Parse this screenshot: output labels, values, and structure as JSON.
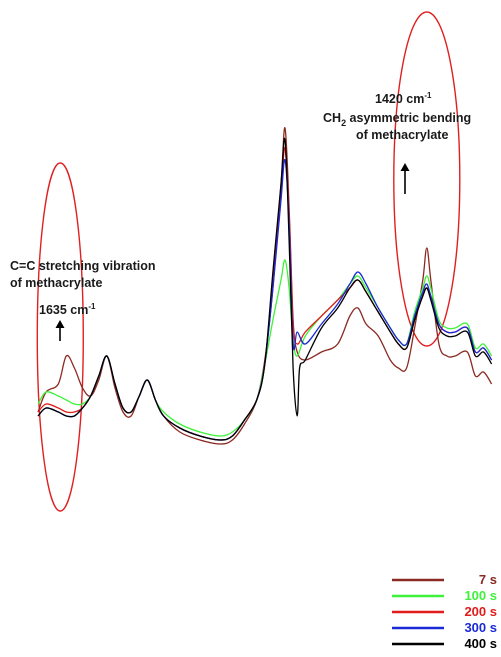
{
  "chart_data": {
    "type": "line",
    "title": "",
    "xlabel": "",
    "ylabel": "",
    "axes_visible": false,
    "grid": false,
    "legend_position": "bottom-right",
    "series": [
      {
        "name": "7 s",
        "color": "#8b2a22",
        "points": [
          [
            0,
            -0.15
          ],
          [
            2,
            0.1
          ],
          [
            5,
            0.2
          ],
          [
            7,
            0.55
          ],
          [
            9,
            0.4
          ],
          [
            11,
            0.15
          ],
          [
            13,
            0.05
          ],
          [
            15,
            0.25
          ],
          [
            17,
            0.55
          ],
          [
            19,
            0.15
          ],
          [
            21,
            -0.15
          ],
          [
            23,
            -0.2
          ],
          [
            25,
            0.05
          ],
          [
            27,
            0.25
          ],
          [
            29,
            0.0
          ],
          [
            31,
            -0.2
          ],
          [
            35,
            -0.4
          ],
          [
            40,
            -0.5
          ],
          [
            45,
            -0.55
          ],
          [
            48,
            -0.5
          ],
          [
            51,
            -0.3
          ],
          [
            54,
            0.0
          ],
          [
            56,
            0.5
          ],
          [
            58,
            1.4
          ],
          [
            60,
            2.7
          ],
          [
            61,
            3.4
          ],
          [
            62,
            2.4
          ],
          [
            63,
            1.0
          ],
          [
            64,
            0.6
          ],
          [
            66,
            0.5
          ],
          [
            70,
            0.6
          ],
          [
            74,
            0.7
          ],
          [
            77,
            1.05
          ],
          [
            79,
            1.15
          ],
          [
            81,
            0.95
          ],
          [
            84,
            0.8
          ],
          [
            87,
            0.5
          ],
          [
            89,
            0.4
          ],
          [
            91,
            0.4
          ],
          [
            93,
            0.9
          ],
          [
            95,
            1.5
          ],
          [
            96,
            1.9
          ],
          [
            97,
            1.5
          ],
          [
            99,
            0.7
          ],
          [
            101,
            0.55
          ],
          [
            103,
            0.55
          ],
          [
            106,
            0.6
          ],
          [
            108,
            0.3
          ],
          [
            110,
            0.35
          ],
          [
            112,
            0.2
          ]
        ]
      },
      {
        "name": "100 s",
        "color": "#3ef23a",
        "points": [
          [
            0,
            -0.05
          ],
          [
            2,
            0.1
          ],
          [
            5,
            0.05
          ],
          [
            7,
            0.0
          ],
          [
            9,
            -0.05
          ],
          [
            11,
            -0.05
          ],
          [
            13,
            0.05
          ],
          [
            15,
            0.3
          ],
          [
            17,
            0.55
          ],
          [
            19,
            0.2
          ],
          [
            21,
            -0.1
          ],
          [
            23,
            -0.15
          ],
          [
            25,
            0.05
          ],
          [
            27,
            0.25
          ],
          [
            29,
            0.0
          ],
          [
            31,
            -0.15
          ],
          [
            35,
            -0.3
          ],
          [
            40,
            -0.4
          ],
          [
            45,
            -0.45
          ],
          [
            48,
            -0.4
          ],
          [
            51,
            -0.25
          ],
          [
            54,
            0.0
          ],
          [
            56,
            0.45
          ],
          [
            58,
            1.0
          ],
          [
            60,
            1.5
          ],
          [
            61,
            1.75
          ],
          [
            62,
            1.4
          ],
          [
            63,
            0.75
          ],
          [
            64,
            0.55
          ],
          [
            66,
            0.8
          ],
          [
            70,
            1.05
          ],
          [
            74,
            1.25
          ],
          [
            77,
            1.45
          ],
          [
            79,
            1.55
          ],
          [
            81,
            1.4
          ],
          [
            84,
            1.15
          ],
          [
            87,
            0.9
          ],
          [
            89,
            0.75
          ],
          [
            91,
            0.7
          ],
          [
            93,
            1.1
          ],
          [
            95,
            1.4
          ],
          [
            96,
            1.55
          ],
          [
            97,
            1.4
          ],
          [
            99,
            1.0
          ],
          [
            101,
            0.9
          ],
          [
            103,
            0.9
          ],
          [
            106,
            0.95
          ],
          [
            108,
            0.65
          ],
          [
            110,
            0.7
          ],
          [
            112,
            0.55
          ]
        ]
      },
      {
        "name": "200 s",
        "color": "#e21b1b",
        "points": [
          [
            0,
            -0.15
          ],
          [
            2,
            -0.05
          ],
          [
            5,
            -0.1
          ],
          [
            7,
            -0.15
          ],
          [
            9,
            -0.15
          ],
          [
            11,
            -0.1
          ],
          [
            13,
            0.05
          ],
          [
            15,
            0.3
          ],
          [
            17,
            0.55
          ],
          [
            19,
            0.2
          ],
          [
            21,
            -0.1
          ],
          [
            23,
            -0.15
          ],
          [
            25,
            0.05
          ],
          [
            27,
            0.25
          ],
          [
            29,
            0.0
          ],
          [
            31,
            -0.2
          ],
          [
            35,
            -0.35
          ],
          [
            40,
            -0.45
          ],
          [
            45,
            -0.5
          ],
          [
            48,
            -0.45
          ],
          [
            51,
            -0.25
          ],
          [
            54,
            0.0
          ],
          [
            56,
            0.45
          ],
          [
            58,
            1.5
          ],
          [
            60,
            2.6
          ],
          [
            61,
            3.15
          ],
          [
            62,
            2.3
          ],
          [
            63,
            0.95
          ],
          [
            64,
            0.7
          ],
          [
            66,
            0.85
          ],
          [
            70,
            1.05
          ],
          [
            74,
            1.25
          ],
          [
            77,
            1.4
          ],
          [
            79,
            1.5
          ],
          [
            81,
            1.35
          ],
          [
            84,
            1.1
          ],
          [
            87,
            0.85
          ],
          [
            89,
            0.7
          ],
          [
            91,
            0.65
          ],
          [
            93,
            1.0
          ],
          [
            95,
            1.3
          ],
          [
            96,
            1.4
          ],
          [
            97,
            1.3
          ],
          [
            99,
            0.95
          ],
          [
            101,
            0.85
          ],
          [
            103,
            0.85
          ],
          [
            106,
            0.9
          ],
          [
            108,
            0.6
          ],
          [
            110,
            0.65
          ],
          [
            112,
            0.5
          ]
        ]
      },
      {
        "name": "300 s",
        "color": "#1a2bd6",
        "points": [
          [
            0,
            -0.2
          ],
          [
            2,
            -0.1
          ],
          [
            5,
            -0.15
          ],
          [
            7,
            -0.2
          ],
          [
            9,
            -0.2
          ],
          [
            11,
            -0.1
          ],
          [
            13,
            0.05
          ],
          [
            15,
            0.3
          ],
          [
            17,
            0.55
          ],
          [
            19,
            0.2
          ],
          [
            21,
            -0.1
          ],
          [
            23,
            -0.15
          ],
          [
            25,
            0.05
          ],
          [
            27,
            0.25
          ],
          [
            29,
            0.0
          ],
          [
            31,
            -0.2
          ],
          [
            35,
            -0.35
          ],
          [
            40,
            -0.45
          ],
          [
            45,
            -0.5
          ],
          [
            48,
            -0.45
          ],
          [
            51,
            -0.25
          ],
          [
            54,
            0.0
          ],
          [
            56,
            0.45
          ],
          [
            58,
            1.4
          ],
          [
            60,
            2.5
          ],
          [
            61,
            3.0
          ],
          [
            62,
            2.2
          ],
          [
            63,
            0.7
          ],
          [
            64,
            0.85
          ],
          [
            66,
            0.7
          ],
          [
            70,
            0.95
          ],
          [
            74,
            1.2
          ],
          [
            77,
            1.45
          ],
          [
            79,
            1.6
          ],
          [
            81,
            1.45
          ],
          [
            84,
            1.15
          ],
          [
            87,
            0.9
          ],
          [
            89,
            0.75
          ],
          [
            91,
            0.7
          ],
          [
            93,
            1.05
          ],
          [
            95,
            1.35
          ],
          [
            96,
            1.45
          ],
          [
            97,
            1.3
          ],
          [
            99,
            0.95
          ],
          [
            101,
            0.85
          ],
          [
            103,
            0.85
          ],
          [
            106,
            0.9
          ],
          [
            108,
            0.6
          ],
          [
            110,
            0.65
          ],
          [
            112,
            0.5
          ]
        ]
      },
      {
        "name": "400 s",
        "color": "#000000",
        "points": [
          [
            0,
            -0.2
          ],
          [
            2,
            -0.1
          ],
          [
            5,
            -0.15
          ],
          [
            7,
            -0.2
          ],
          [
            9,
            -0.2
          ],
          [
            11,
            -0.1
          ],
          [
            13,
            0.05
          ],
          [
            15,
            0.3
          ],
          [
            17,
            0.55
          ],
          [
            19,
            0.2
          ],
          [
            21,
            -0.1
          ],
          [
            23,
            -0.15
          ],
          [
            25,
            0.05
          ],
          [
            27,
            0.25
          ],
          [
            29,
            0.0
          ],
          [
            31,
            -0.2
          ],
          [
            35,
            -0.35
          ],
          [
            40,
            -0.45
          ],
          [
            45,
            -0.5
          ],
          [
            48,
            -0.45
          ],
          [
            51,
            -0.25
          ],
          [
            54,
            0.0
          ],
          [
            56,
            0.45
          ],
          [
            58,
            1.6
          ],
          [
            60,
            2.7
          ],
          [
            61,
            3.25
          ],
          [
            62,
            2.0
          ],
          [
            63,
            0.4
          ],
          [
            64,
            -0.2
          ],
          [
            64.6,
            0.4
          ],
          [
            66,
            0.5
          ],
          [
            70,
            0.9
          ],
          [
            74,
            1.15
          ],
          [
            77,
            1.4
          ],
          [
            79,
            1.5
          ],
          [
            81,
            1.35
          ],
          [
            84,
            1.1
          ],
          [
            87,
            0.85
          ],
          [
            89,
            0.7
          ],
          [
            91,
            0.65
          ],
          [
            93,
            1.0
          ],
          [
            95,
            1.3
          ],
          [
            96,
            1.4
          ],
          [
            97,
            1.25
          ],
          [
            99,
            0.9
          ],
          [
            101,
            0.8
          ],
          [
            103,
            0.8
          ],
          [
            106,
            0.85
          ],
          [
            108,
            0.55
          ],
          [
            110,
            0.6
          ],
          [
            112,
            0.45
          ]
        ]
      }
    ],
    "highlights": [
      {
        "label": "1635 cm-1 band",
        "center_x": 5.5,
        "color": "#e02020"
      },
      {
        "label": "1420 cm-1 band",
        "center_x": 96,
        "color": "#e02020"
      }
    ],
    "annotations": {
      "left_line1": "C=C stretching vibration",
      "left_line2": "of methacrylate",
      "left_wavenumber": "1635 cm",
      "left_wavenumber_sup": "-1",
      "right_wavenumber": "1420 cm",
      "right_wavenumber_sup": "-1",
      "right_line1_prefix": "CH",
      "right_line1_sub": "2",
      "right_line1_rest": " asymmetric bending",
      "right_line2": "of methacrylate"
    }
  }
}
